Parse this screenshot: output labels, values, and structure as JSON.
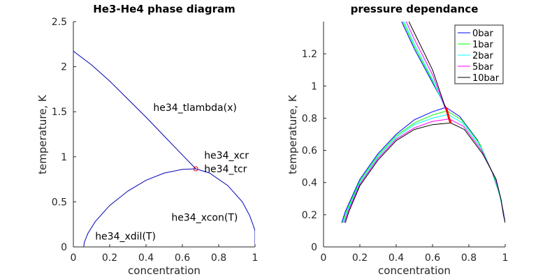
{
  "chart_data": [
    {
      "type": "line",
      "title": "He3-He4 phase diagram",
      "xlabel": "concentration",
      "ylabel": "temperature, K",
      "xlim": [
        0,
        1
      ],
      "ylim": [
        0,
        2.5
      ],
      "xticks": [
        0,
        0.2,
        0.4,
        0.6,
        0.8,
        1
      ],
      "xtick_labels": [
        "0",
        "0.2",
        "0.4",
        "0.6",
        "0.8",
        "1"
      ],
      "yticks": [
        0,
        0.5,
        1,
        1.5,
        2,
        2.5
      ],
      "ytick_labels": [
        "0",
        "0.5",
        "1",
        "1.5",
        "2",
        "2.5"
      ],
      "grid": false,
      "color": "#0000b4",
      "series": [
        {
          "x": [
            0,
            0.1,
            0.2,
            0.3,
            0.4,
            0.5,
            0.6,
            0.674
          ],
          "y": [
            2.172,
            2.02,
            1.84,
            1.64,
            1.44,
            1.23,
            1.02,
            0.867
          ]
        },
        {
          "x": [
            0.057,
            0.06,
            0.08,
            0.12,
            0.2,
            0.3,
            0.4,
            0.5,
            0.6,
            0.674,
            0.75,
            0.85,
            0.93,
            0.97,
            0.99,
            1.0,
            1.0
          ],
          "y": [
            0,
            0.05,
            0.15,
            0.28,
            0.46,
            0.62,
            0.74,
            0.82,
            0.86,
            0.867,
            0.82,
            0.68,
            0.5,
            0.35,
            0.24,
            0.18,
            0
          ]
        }
      ],
      "marker": {
        "x": 0.674,
        "y": 0.867,
        "color": "#ff0000"
      },
      "annotations": [
        {
          "text": "he34_tlambda(x)",
          "x": 0.44,
          "y": 1.51
        },
        {
          "text": "he34_xcr",
          "x": 0.72,
          "y": 0.98
        },
        {
          "text": "he34_tcr",
          "x": 0.72,
          "y": 0.83
        },
        {
          "text": "he34_xcon(T)",
          "x": 0.54,
          "y": 0.29
        },
        {
          "text": "he34_xdil(T)",
          "x": 0.12,
          "y": 0.08
        }
      ]
    },
    {
      "type": "line",
      "title": "pressure dependance",
      "xlabel": "concentration",
      "ylabel": "temperature, K",
      "xlim": [
        0,
        1
      ],
      "ylim": [
        0,
        1.4
      ],
      "xticks": [
        0,
        0.2,
        0.4,
        0.6,
        0.8,
        1
      ],
      "xtick_labels": [
        "0",
        "0.2",
        "0.4",
        "0.6",
        "0.8",
        "1"
      ],
      "yticks": [
        0,
        0.2,
        0.4,
        0.6,
        0.8,
        1,
        1.2
      ],
      "ytick_labels": [
        "0",
        "0.2",
        "0.4",
        "0.6",
        "0.8",
        "1",
        "1.2"
      ],
      "grid": false,
      "legend": "top-right",
      "series": [
        {
          "name": "0bar",
          "color": "#0000ff",
          "lambda": {
            "x": [
              0.43,
              0.5,
              0.6,
              0.674
            ],
            "y": [
              1.4,
              1.23,
              1.02,
              0.867
            ]
          },
          "phase": {
            "x": [
              0.1,
              0.12,
              0.2,
              0.3,
              0.4,
              0.5,
              0.6,
              0.674,
              0.75,
              0.85,
              0.93,
              0.97,
              0.99,
              1.0
            ],
            "y": [
              0.15,
              0.22,
              0.42,
              0.58,
              0.7,
              0.79,
              0.84,
              0.867,
              0.81,
              0.66,
              0.46,
              0.32,
              0.22,
              0.15
            ]
          }
        },
        {
          "name": "1bar",
          "color": "#00ff00",
          "lambda": {
            "x": [
              0.437,
              0.5,
              0.6,
              0.68
            ],
            "y": [
              1.4,
              1.245,
              1.03,
              0.845
            ]
          },
          "phase": {
            "x": [
              0.105,
              0.125,
              0.2,
              0.3,
              0.4,
              0.5,
              0.6,
              0.68,
              0.76,
              0.86,
              0.935,
              0.972,
              0.99,
              1.0
            ],
            "y": [
              0.15,
              0.22,
              0.41,
              0.57,
              0.69,
              0.77,
              0.82,
              0.845,
              0.79,
              0.64,
              0.45,
              0.31,
              0.21,
              0.15
            ]
          }
        },
        {
          "name": "2bar",
          "color": "#00ffff",
          "lambda": {
            "x": [
              0.444,
              0.5,
              0.6,
              0.685
            ],
            "y": [
              1.4,
              1.26,
              1.04,
              0.823
            ]
          },
          "phase": {
            "x": [
              0.11,
              0.13,
              0.2,
              0.3,
              0.4,
              0.5,
              0.6,
              0.685,
              0.765,
              0.865,
              0.94,
              0.974,
              0.99,
              1.0
            ],
            "y": [
              0.15,
              0.22,
              0.4,
              0.56,
              0.68,
              0.76,
              0.8,
              0.823,
              0.77,
              0.62,
              0.44,
              0.3,
              0.21,
              0.15
            ]
          }
        },
        {
          "name": "5bar",
          "color": "#ff00ff",
          "lambda": {
            "x": [
              0.455,
              0.5,
              0.6,
              0.692
            ],
            "y": [
              1.4,
              1.29,
              1.07,
              0.795
            ]
          },
          "phase": {
            "x": [
              0.115,
              0.135,
              0.2,
              0.3,
              0.4,
              0.5,
              0.6,
              0.692,
              0.77,
              0.87,
              0.945,
              0.976,
              0.99,
              1.0
            ],
            "y": [
              0.15,
              0.22,
              0.39,
              0.55,
              0.67,
              0.74,
              0.78,
              0.795,
              0.75,
              0.6,
              0.43,
              0.3,
              0.21,
              0.15
            ]
          }
        },
        {
          "name": "10bar",
          "color": "#000000",
          "lambda": {
            "x": [
              0.47,
              0.5,
              0.6,
              0.7
            ],
            "y": [
              1.4,
              1.33,
              1.1,
              0.77
            ]
          },
          "phase": {
            "x": [
              0.12,
              0.14,
              0.2,
              0.3,
              0.4,
              0.5,
              0.6,
              0.7,
              0.775,
              0.875,
              0.95,
              0.978,
              0.99,
              1.0
            ],
            "y": [
              0.15,
              0.22,
              0.38,
              0.54,
              0.66,
              0.73,
              0.76,
              0.77,
              0.73,
              0.58,
              0.42,
              0.29,
              0.2,
              0.15
            ]
          }
        }
      ],
      "critical_line": {
        "color": "#ff0000",
        "x": [
          0.674,
          0.68,
          0.685,
          0.692,
          0.7
        ],
        "y": [
          0.867,
          0.845,
          0.823,
          0.795,
          0.77
        ]
      }
    }
  ]
}
